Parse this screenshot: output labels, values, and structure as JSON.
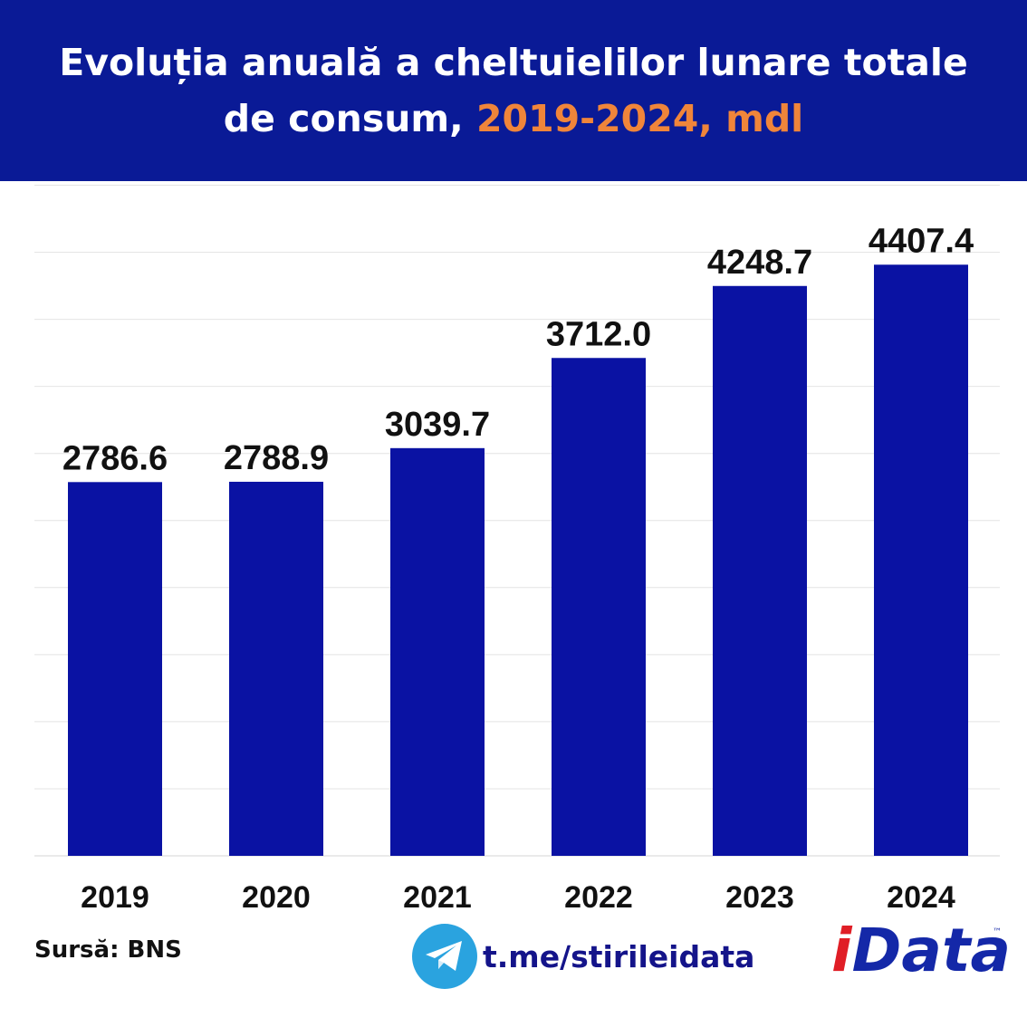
{
  "header": {
    "title_line1": "Evoluția anuală a cheltuielilor lunare totale",
    "title_line2_prefix": "de consum, ",
    "title_line2_accent": "2019-2024, mdl"
  },
  "colors": {
    "header_bg": "#0a1a96",
    "accent": "#f0853a",
    "bar": "#0a12a3",
    "gridline": "#e4e4e4",
    "telegram": "#2aa3df",
    "logo_red": "#e01e26",
    "logo_blue": "#1428a8"
  },
  "chart_data": {
    "type": "bar",
    "title": "Evoluția anuală a cheltuielilor lunare totale de consum, 2019-2024, mdl",
    "categories": [
      "2019",
      "2020",
      "2021",
      "2022",
      "2023",
      "2024"
    ],
    "values": [
      2786.6,
      2788.9,
      3039.7,
      3712.0,
      4248.7,
      4407.4
    ],
    "value_labels": [
      "2786.6",
      "2788.9",
      "3039.7",
      "3712.0",
      "4248.7",
      "4407.4"
    ],
    "xlabel": "",
    "ylabel": "",
    "ylim": [
      0,
      5000
    ],
    "gridlines": true,
    "y_axis_labels_shown": false,
    "legend": "none"
  },
  "footer": {
    "source": "Sursă: BNS",
    "telegram_link": "t.me/stirileidata",
    "telegram_icon": "telegram-icon",
    "logo_i": "i",
    "logo_rest": "Data",
    "logo_tm": "™"
  }
}
